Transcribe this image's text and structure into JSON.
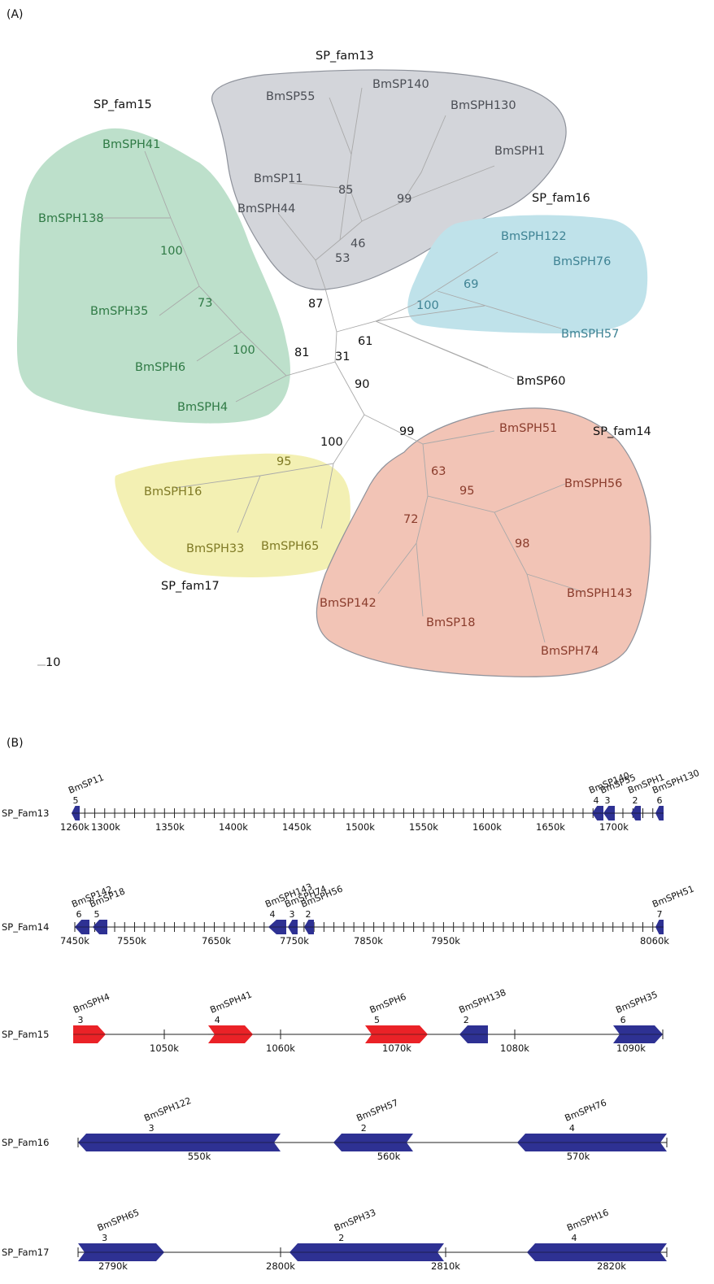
{
  "panels": {
    "a": "(A)",
    "b": "(B)"
  },
  "colors": {
    "fam13": "#d3d5da",
    "fam15": "#bde0cb",
    "fam16": "#bfe2ea",
    "fam17": "#f3f0b3",
    "fam14": "#f2c4b6",
    "fam13_text": "#4b4e55",
    "fam15_text": "#2f7a45",
    "fam16_text": "#3f8394",
    "fam17_text": "#7f7a25",
    "fam14_text": "#8a3c2c",
    "gene_blue": "#2e3193",
    "gene_red": "#ea2227"
  },
  "tree": {
    "scale_bar": "10",
    "families": {
      "fam13": "SP_fam13",
      "fam15": "SP_fam15",
      "fam16": "SP_fam16",
      "fam17": "SP_fam17",
      "fam14": "SP_fam14"
    },
    "leaves": {
      "fam13": [
        "BmSP55",
        "BmSP140",
        "BmSPH130",
        "BmSPH1",
        "BmSP11",
        "BmSPH44"
      ],
      "fam15": [
        "BmSPH41",
        "BmSPH138",
        "BmSPH35",
        "BmSPH6",
        "BmSPH4"
      ],
      "fam16": [
        "BmSPH122",
        "BmSPH76",
        "BmSPH57"
      ],
      "fam17": [
        "BmSPH16",
        "BmSPH33",
        "BmSPH65"
      ],
      "fam14": [
        "BmSPH51",
        "BmSPH56",
        "BmSPH143",
        "BmSP142",
        "BmSP18",
        "BmSPH74"
      ],
      "other": [
        "BmSP60"
      ]
    },
    "bootstrap": {
      "fam13": [
        "85",
        "99",
        "46",
        "53"
      ],
      "fam15": [
        "100",
        "73",
        "100"
      ],
      "fam16": [
        "69",
        "100"
      ],
      "fam17": [
        "95"
      ],
      "fam14": [
        "63",
        "95",
        "72",
        "98"
      ],
      "backbone": [
        "87",
        "61",
        "81",
        "31",
        "90",
        "100",
        "99"
      ]
    }
  },
  "tracks": [
    {
      "name": "SP_Fam13",
      "ticks": [
        "1260k",
        "1300k",
        "1350k",
        "1400k",
        "1450k",
        "1500k",
        "1550k",
        "1600k",
        "1650k",
        "1700k"
      ],
      "genes": [
        {
          "name": "BmSP11",
          "num": "5",
          "color": "blue"
        },
        {
          "name": "BmSP140",
          "num": "4",
          "color": "blue"
        },
        {
          "name": "BmSP55",
          "num": "3",
          "color": "blue"
        },
        {
          "name": "BmSPH1",
          "num": "2",
          "color": "blue"
        },
        {
          "name": "BmSPH130",
          "num": "6",
          "color": "blue"
        }
      ]
    },
    {
      "name": "SP_Fam14",
      "ticks": [
        "7450k",
        "7550k",
        "7650k",
        "7750k",
        "7850k",
        "7950k",
        "8060k"
      ],
      "genes": [
        {
          "name": "BmSP142",
          "num": "6",
          "color": "blue"
        },
        {
          "name": "BmSP18",
          "num": "5",
          "color": "blue"
        },
        {
          "name": "BmSPH143",
          "num": "4",
          "color": "blue"
        },
        {
          "name": "BmSPH74",
          "num": "3",
          "color": "blue"
        },
        {
          "name": "BmSPH56",
          "num": "2",
          "color": "blue"
        },
        {
          "name": "BmSPH51",
          "num": "7",
          "color": "blue"
        }
      ]
    },
    {
      "name": "SP_Fam15",
      "ticks": [
        "1050k",
        "1060k",
        "1070k",
        "1080k",
        "1090k"
      ],
      "genes": [
        {
          "name": "BmSPH4",
          "num": "3",
          "color": "red"
        },
        {
          "name": "BmSPH41",
          "num": "4",
          "color": "red"
        },
        {
          "name": "BmSPH6",
          "num": "5",
          "color": "red"
        },
        {
          "name": "BmSPH138",
          "num": "2",
          "color": "blue"
        },
        {
          "name": "BmSPH35",
          "num": "6",
          "color": "blue"
        }
      ]
    },
    {
      "name": "SP_Fam16",
      "ticks": [
        "550k",
        "560k",
        "570k"
      ],
      "genes": [
        {
          "name": "BmSPH122",
          "num": "3",
          "color": "blue"
        },
        {
          "name": "BmSPH57",
          "num": "2",
          "color": "blue"
        },
        {
          "name": "BmSPH76",
          "num": "4",
          "color": "blue"
        }
      ]
    },
    {
      "name": "SP_Fam17",
      "ticks": [
        "2790k",
        "2800k",
        "2810k",
        "2820k"
      ],
      "genes": [
        {
          "name": "BmSPH65",
          "num": "3",
          "color": "blue"
        },
        {
          "name": "BmSPH33",
          "num": "2",
          "color": "blue"
        },
        {
          "name": "BmSPH16",
          "num": "4",
          "color": "blue"
        }
      ]
    }
  ]
}
